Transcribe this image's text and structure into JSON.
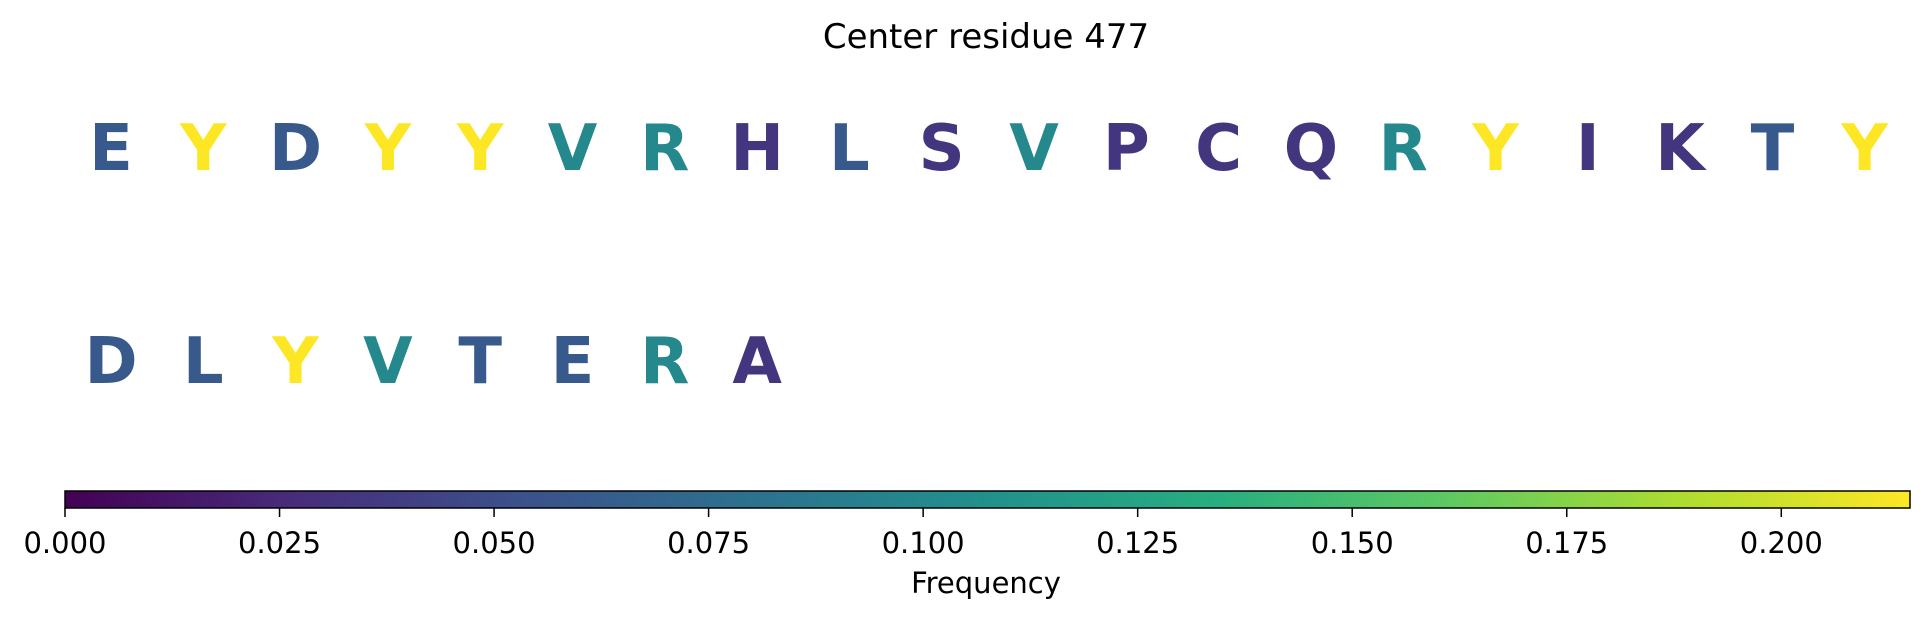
{
  "chart_data": {
    "type": "heatmap",
    "title": "Center residue 477",
    "residues": [
      {
        "letter": "E",
        "value": 0.06
      },
      {
        "letter": "Y",
        "value": 0.215
      },
      {
        "letter": "D",
        "value": 0.06
      },
      {
        "letter": "Y",
        "value": 0.215
      },
      {
        "letter": "Y",
        "value": 0.215
      },
      {
        "letter": "V",
        "value": 0.1
      },
      {
        "letter": "R",
        "value": 0.1
      },
      {
        "letter": "H",
        "value": 0.033
      },
      {
        "letter": "L",
        "value": 0.06
      },
      {
        "letter": "S",
        "value": 0.033
      },
      {
        "letter": "V",
        "value": 0.1
      },
      {
        "letter": "P",
        "value": 0.033
      },
      {
        "letter": "C",
        "value": 0.033
      },
      {
        "letter": "Q",
        "value": 0.033
      },
      {
        "letter": "R",
        "value": 0.1
      },
      {
        "letter": "Y",
        "value": 0.215
      },
      {
        "letter": "I",
        "value": 0.033
      },
      {
        "letter": "K",
        "value": 0.033
      },
      {
        "letter": "T",
        "value": 0.06
      },
      {
        "letter": "Y",
        "value": 0.215
      },
      {
        "letter": "D",
        "value": 0.06
      },
      {
        "letter": "L",
        "value": 0.06
      },
      {
        "letter": "Y",
        "value": 0.215
      },
      {
        "letter": "V",
        "value": 0.1
      },
      {
        "letter": "T",
        "value": 0.06
      },
      {
        "letter": "E",
        "value": 0.06
      },
      {
        "letter": "R",
        "value": 0.1
      },
      {
        "letter": "A",
        "value": 0.033
      }
    ],
    "colorbar": {
      "label": "Frequency",
      "range": [
        0,
        0.215
      ],
      "colormap": "viridis",
      "ticks": [
        0.0,
        0.025,
        0.05,
        0.075,
        0.1,
        0.125,
        0.15,
        0.175,
        0.2
      ],
      "tick_labels": [
        "0.000",
        "0.025",
        "0.050",
        "0.075",
        "0.100",
        "0.125",
        "0.150",
        "0.175",
        "0.200"
      ]
    }
  }
}
